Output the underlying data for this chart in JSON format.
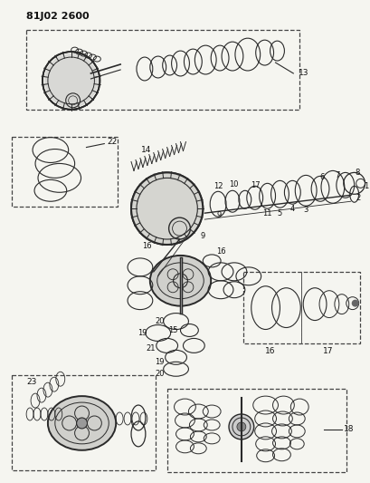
{
  "title": "81J02 2600",
  "bg_color": "#f5f5f0",
  "line_color": "#2a2a2a",
  "text_color": "#111111",
  "fig_width": 4.09,
  "fig_height": 5.33,
  "dpi": 100
}
